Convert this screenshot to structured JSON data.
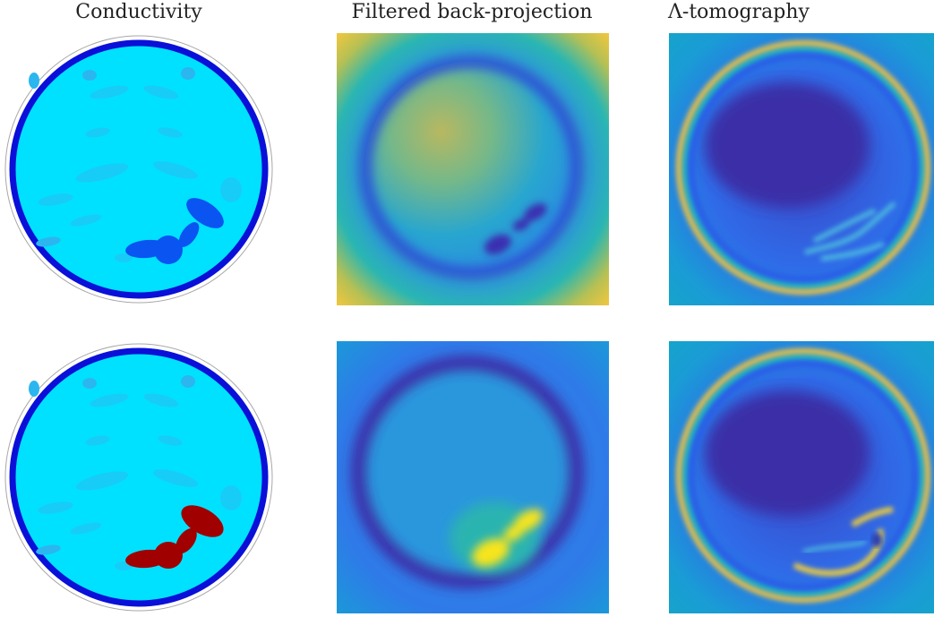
{
  "figure": {
    "titles": {
      "conductivity": "Conductivity",
      "fbp": "Filtered back-projection",
      "lambda": "Λ-tomography"
    },
    "rows": [
      {
        "row": 1,
        "inclusion_type": "resistive",
        "inclusion_color": "#0a54f2"
      },
      {
        "row": 2,
        "inclusion_type": "conductive",
        "inclusion_color": "#a00000"
      }
    ],
    "colors": {
      "background_conductivity": "#00e1ff",
      "electrode_ring": "#0a10d8",
      "lung_regions": "#18ccf8",
      "lung_regions_dim": "#2bb6ef",
      "colormap": [
        "#3e26a8",
        "#2b5cf0",
        "#1598d4",
        "#2fb8a0",
        "#a6bf5c",
        "#f6c33c",
        "#f9f50e"
      ]
    }
  }
}
